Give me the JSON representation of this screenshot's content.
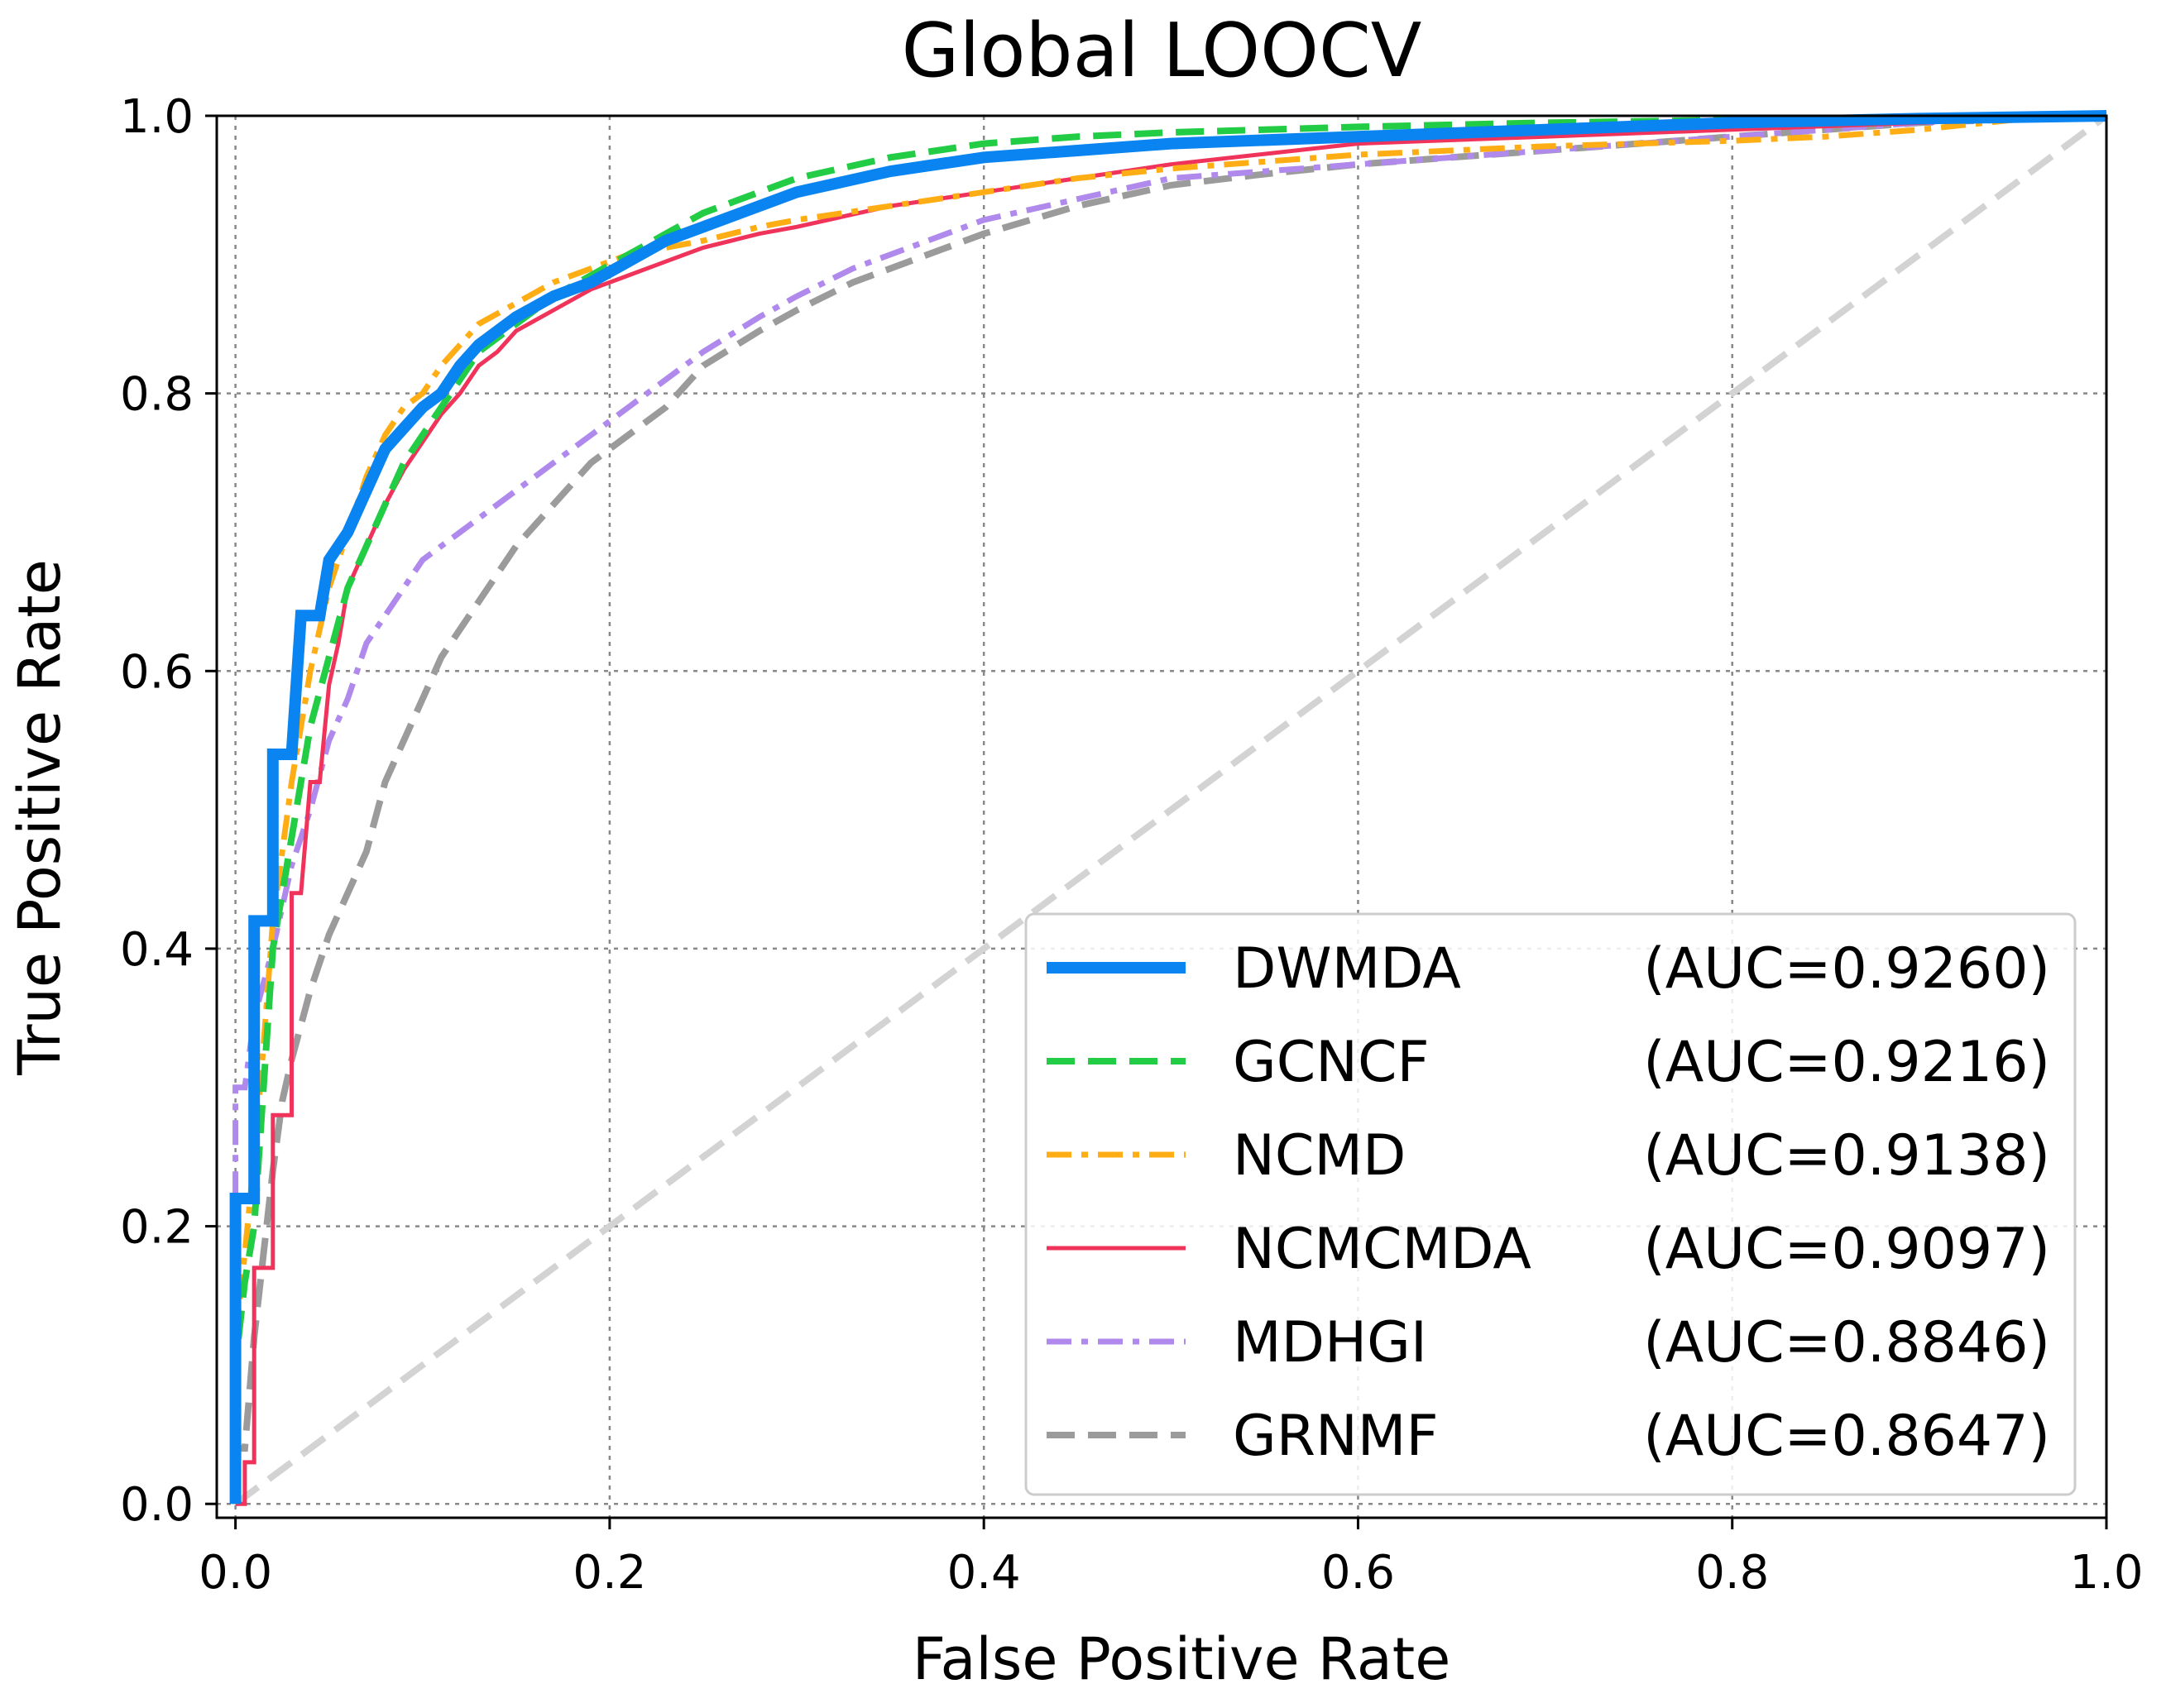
{
  "chart_data": {
    "type": "line",
    "title": "Global LOOCV",
    "xlabel": "False Positive Rate",
    "ylabel": "True Positive Rate",
    "xlim": [
      -0.01,
      1.0
    ],
    "ylim": [
      -0.01,
      1.0
    ],
    "xticks": [
      "0.0",
      "0.2",
      "0.4",
      "0.6",
      "0.8",
      "1.0"
    ],
    "yticks": [
      "0.0",
      "0.2",
      "0.4",
      "0.6",
      "0.8",
      "1.0"
    ],
    "grid": true,
    "legend_position": "lower-right",
    "series": [
      {
        "name": "DWMDA",
        "auc_label": "(AUC=0.9260)",
        "color": "#0a84f0",
        "style": "solid-thick",
        "points": [
          [
            0,
            0
          ],
          [
            0,
            0.22
          ],
          [
            0.01,
            0.22
          ],
          [
            0.01,
            0.42
          ],
          [
            0.02,
            0.42
          ],
          [
            0.02,
            0.54
          ],
          [
            0.03,
            0.54
          ],
          [
            0.035,
            0.64
          ],
          [
            0.045,
            0.64
          ],
          [
            0.05,
            0.68
          ],
          [
            0.06,
            0.7
          ],
          [
            0.07,
            0.73
          ],
          [
            0.08,
            0.76
          ],
          [
            0.09,
            0.775
          ],
          [
            0.1,
            0.79
          ],
          [
            0.11,
            0.8
          ],
          [
            0.12,
            0.82
          ],
          [
            0.13,
            0.835
          ],
          [
            0.14,
            0.845
          ],
          [
            0.15,
            0.855
          ],
          [
            0.17,
            0.87
          ],
          [
            0.19,
            0.88
          ],
          [
            0.21,
            0.895
          ],
          [
            0.23,
            0.91
          ],
          [
            0.25,
            0.92
          ],
          [
            0.28,
            0.935
          ],
          [
            0.3,
            0.945
          ],
          [
            0.35,
            0.96
          ],
          [
            0.4,
            0.97
          ],
          [
            0.45,
            0.975
          ],
          [
            0.5,
            0.98
          ],
          [
            0.6,
            0.985
          ],
          [
            0.7,
            0.99
          ],
          [
            0.8,
            0.995
          ],
          [
            0.9,
            0.998
          ],
          [
            1,
            1
          ]
        ]
      },
      {
        "name": "GCNCF",
        "auc_label": "(AUC=0.9216)",
        "color": "#22cc44",
        "style": "dashed",
        "points": [
          [
            0,
            0
          ],
          [
            0,
            0.1
          ],
          [
            0.005,
            0.16
          ],
          [
            0.01,
            0.2
          ],
          [
            0.015,
            0.3
          ],
          [
            0.02,
            0.4
          ],
          [
            0.03,
            0.48
          ],
          [
            0.04,
            0.56
          ],
          [
            0.05,
            0.61
          ],
          [
            0.06,
            0.66
          ],
          [
            0.07,
            0.69
          ],
          [
            0.08,
            0.72
          ],
          [
            0.09,
            0.75
          ],
          [
            0.1,
            0.77
          ],
          [
            0.11,
            0.79
          ],
          [
            0.12,
            0.81
          ],
          [
            0.13,
            0.83
          ],
          [
            0.15,
            0.85
          ],
          [
            0.17,
            0.87
          ],
          [
            0.19,
            0.885
          ],
          [
            0.21,
            0.9
          ],
          [
            0.23,
            0.915
          ],
          [
            0.25,
            0.93
          ],
          [
            0.28,
            0.945
          ],
          [
            0.3,
            0.955
          ],
          [
            0.35,
            0.97
          ],
          [
            0.4,
            0.98
          ],
          [
            0.45,
            0.985
          ],
          [
            0.5,
            0.988
          ],
          [
            0.6,
            0.992
          ],
          [
            0.7,
            0.995
          ],
          [
            0.8,
            0.997
          ],
          [
            0.9,
            0.999
          ],
          [
            1,
            1
          ]
        ]
      },
      {
        "name": "NCMD",
        "auc_label": "(AUC=0.9138)",
        "color": "#ffad14",
        "style": "dashdot",
        "points": [
          [
            0,
            0
          ],
          [
            0,
            0.12
          ],
          [
            0.005,
            0.18
          ],
          [
            0.01,
            0.25
          ],
          [
            0.015,
            0.33
          ],
          [
            0.02,
            0.42
          ],
          [
            0.03,
            0.52
          ],
          [
            0.04,
            0.6
          ],
          [
            0.05,
            0.66
          ],
          [
            0.06,
            0.7
          ],
          [
            0.07,
            0.74
          ],
          [
            0.08,
            0.77
          ],
          [
            0.09,
            0.79
          ],
          [
            0.1,
            0.8
          ],
          [
            0.11,
            0.82
          ],
          [
            0.12,
            0.835
          ],
          [
            0.13,
            0.85
          ],
          [
            0.15,
            0.865
          ],
          [
            0.17,
            0.88
          ],
          [
            0.19,
            0.89
          ],
          [
            0.21,
            0.9
          ],
          [
            0.23,
            0.905
          ],
          [
            0.25,
            0.91
          ],
          [
            0.28,
            0.92
          ],
          [
            0.3,
            0.925
          ],
          [
            0.35,
            0.935
          ],
          [
            0.4,
            0.945
          ],
          [
            0.45,
            0.955
          ],
          [
            0.5,
            0.962
          ],
          [
            0.6,
            0.972
          ],
          [
            0.7,
            0.978
          ],
          [
            0.8,
            0.982
          ],
          [
            0.85,
            0.985
          ],
          [
            0.9,
            0.99
          ],
          [
            0.95,
            0.997
          ],
          [
            1,
            1
          ]
        ]
      },
      {
        "name": "NCMCMDA",
        "auc_label": "(AUC=0.9097)",
        "color": "#f0335a",
        "style": "solid",
        "points": [
          [
            0,
            0
          ],
          [
            0.005,
            0
          ],
          [
            0.005,
            0.03
          ],
          [
            0.01,
            0.03
          ],
          [
            0.01,
            0.17
          ],
          [
            0.02,
            0.17
          ],
          [
            0.02,
            0.28
          ],
          [
            0.03,
            0.28
          ],
          [
            0.03,
            0.44
          ],
          [
            0.035,
            0.44
          ],
          [
            0.04,
            0.52
          ],
          [
            0.045,
            0.52
          ],
          [
            0.05,
            0.59
          ],
          [
            0.055,
            0.62
          ],
          [
            0.06,
            0.66
          ],
          [
            0.07,
            0.69
          ],
          [
            0.08,
            0.72
          ],
          [
            0.09,
            0.745
          ],
          [
            0.1,
            0.765
          ],
          [
            0.11,
            0.785
          ],
          [
            0.12,
            0.8
          ],
          [
            0.13,
            0.82
          ],
          [
            0.14,
            0.83
          ],
          [
            0.15,
            0.845
          ],
          [
            0.17,
            0.86
          ],
          [
            0.19,
            0.875
          ],
          [
            0.21,
            0.885
          ],
          [
            0.23,
            0.895
          ],
          [
            0.25,
            0.905
          ],
          [
            0.28,
            0.915
          ],
          [
            0.3,
            0.92
          ],
          [
            0.35,
            0.935
          ],
          [
            0.4,
            0.945
          ],
          [
            0.45,
            0.955
          ],
          [
            0.5,
            0.965
          ],
          [
            0.6,
            0.98
          ],
          [
            0.7,
            0.985
          ],
          [
            0.8,
            0.99
          ],
          [
            0.9,
            0.995
          ],
          [
            1,
            1
          ]
        ]
      },
      {
        "name": "MDHGI",
        "auc_label": "(AUC=0.8846)",
        "color": "#b089ec",
        "style": "dashdot",
        "points": [
          [
            0,
            0
          ],
          [
            0,
            0.3
          ],
          [
            0.005,
            0.3
          ],
          [
            0.01,
            0.35
          ],
          [
            0.02,
            0.4
          ],
          [
            0.03,
            0.46
          ],
          [
            0.04,
            0.5
          ],
          [
            0.05,
            0.55
          ],
          [
            0.06,
            0.58
          ],
          [
            0.07,
            0.62
          ],
          [
            0.08,
            0.64
          ],
          [
            0.09,
            0.66
          ],
          [
            0.1,
            0.68
          ],
          [
            0.11,
            0.69
          ],
          [
            0.12,
            0.7
          ],
          [
            0.13,
            0.71
          ],
          [
            0.14,
            0.72
          ],
          [
            0.15,
            0.73
          ],
          [
            0.17,
            0.75
          ],
          [
            0.19,
            0.77
          ],
          [
            0.21,
            0.79
          ],
          [
            0.23,
            0.81
          ],
          [
            0.25,
            0.83
          ],
          [
            0.28,
            0.855
          ],
          [
            0.3,
            0.87
          ],
          [
            0.33,
            0.89
          ],
          [
            0.36,
            0.905
          ],
          [
            0.4,
            0.925
          ],
          [
            0.45,
            0.94
          ],
          [
            0.5,
            0.955
          ],
          [
            0.55,
            0.96
          ],
          [
            0.6,
            0.965
          ],
          [
            0.7,
            0.975
          ],
          [
            0.8,
            0.985
          ],
          [
            0.9,
            0.995
          ],
          [
            1,
            1
          ]
        ]
      },
      {
        "name": "GRNMF",
        "auc_label": "(AUC=0.8647)",
        "color": "#9b9b9b",
        "style": "dashed",
        "points": [
          [
            0,
            0
          ],
          [
            0,
            0.04
          ],
          [
            0.005,
            0.04
          ],
          [
            0.01,
            0.12
          ],
          [
            0.015,
            0.18
          ],
          [
            0.02,
            0.24
          ],
          [
            0.025,
            0.29
          ],
          [
            0.03,
            0.32
          ],
          [
            0.04,
            0.37
          ],
          [
            0.05,
            0.41
          ],
          [
            0.06,
            0.44
          ],
          [
            0.07,
            0.47
          ],
          [
            0.08,
            0.52
          ],
          [
            0.09,
            0.55
          ],
          [
            0.1,
            0.58
          ],
          [
            0.11,
            0.61
          ],
          [
            0.12,
            0.63
          ],
          [
            0.13,
            0.65
          ],
          [
            0.14,
            0.67
          ],
          [
            0.15,
            0.69
          ],
          [
            0.17,
            0.72
          ],
          [
            0.19,
            0.75
          ],
          [
            0.21,
            0.77
          ],
          [
            0.23,
            0.79
          ],
          [
            0.25,
            0.82
          ],
          [
            0.28,
            0.845
          ],
          [
            0.3,
            0.86
          ],
          [
            0.33,
            0.88
          ],
          [
            0.36,
            0.895
          ],
          [
            0.4,
            0.915
          ],
          [
            0.45,
            0.935
          ],
          [
            0.5,
            0.95
          ],
          [
            0.55,
            0.958
          ],
          [
            0.6,
            0.965
          ],
          [
            0.7,
            0.975
          ],
          [
            0.8,
            0.985
          ],
          [
            0.9,
            0.995
          ],
          [
            1,
            1
          ]
        ]
      }
    ],
    "diagonal": {
      "color": "#d3d3d3",
      "style": "dashed",
      "points": [
        [
          0,
          0
        ],
        [
          1,
          1
        ]
      ]
    }
  }
}
